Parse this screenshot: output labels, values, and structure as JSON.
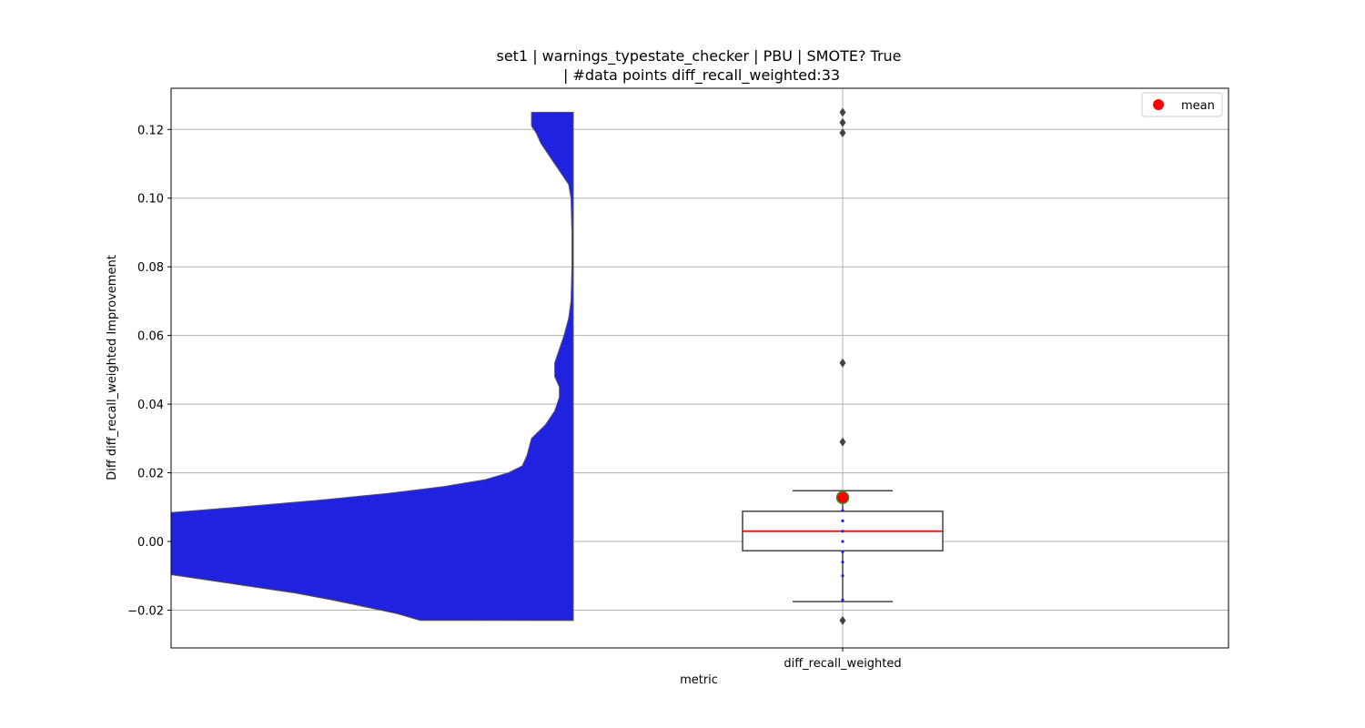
{
  "chart_data": {
    "type": "violin+box",
    "title_line1": "set1 | warnings_typestate_checker | PBU | SMOTE? True",
    "title_line2": "| #data points diff_recall_weighted:33",
    "xlabel": "metric",
    "ylabel": "Diff diff_recall_weighted Improvement",
    "categories": [
      "diff_recall_weighted"
    ],
    "ylim": [
      -0.031,
      0.132
    ],
    "yticks": [
      -0.02,
      0.0,
      0.02,
      0.04,
      0.06,
      0.08,
      0.1,
      0.12
    ],
    "ytick_labels": [
      "−0.02",
      "0.00",
      "0.02",
      "0.04",
      "0.06",
      "0.08",
      "0.10",
      "0.12"
    ],
    "grid": true,
    "legend": {
      "position": "upper-right",
      "entries": [
        {
          "label": "mean",
          "color": "#ff0000"
        }
      ]
    },
    "violin": {
      "color": "#2121e0",
      "range": [
        -0.023,
        0.125
      ],
      "profile": [
        [
          -0.023,
          0.33
        ],
        [
          -0.021,
          0.38
        ],
        [
          -0.019,
          0.45
        ],
        [
          -0.017,
          0.52
        ],
        [
          -0.015,
          0.6
        ],
        [
          -0.013,
          0.7
        ],
        [
          -0.011,
          0.8
        ],
        [
          -0.009,
          0.9
        ],
        [
          -0.007,
          0.96
        ],
        [
          -0.005,
          0.99
        ],
        [
          -0.004,
          1.0
        ],
        [
          0.0,
          1.0
        ],
        [
          0.004,
          1.0
        ],
        [
          0.007,
          1.0
        ],
        [
          0.01,
          0.72
        ],
        [
          0.012,
          0.55
        ],
        [
          0.014,
          0.4
        ],
        [
          0.016,
          0.28
        ],
        [
          0.018,
          0.19
        ],
        [
          0.02,
          0.14
        ],
        [
          0.022,
          0.11
        ],
        [
          0.025,
          0.1
        ],
        [
          0.03,
          0.09
        ],
        [
          0.034,
          0.06
        ],
        [
          0.038,
          0.04
        ],
        [
          0.042,
          0.03
        ],
        [
          0.045,
          0.03
        ],
        [
          0.048,
          0.04
        ],
        [
          0.052,
          0.04
        ],
        [
          0.056,
          0.03
        ],
        [
          0.06,
          0.02
        ],
        [
          0.065,
          0.01
        ],
        [
          0.07,
          0.005
        ],
        [
          0.08,
          0.003
        ],
        [
          0.09,
          0.003
        ],
        [
          0.1,
          0.005
        ],
        [
          0.104,
          0.01
        ],
        [
          0.108,
          0.03
        ],
        [
          0.112,
          0.05
        ],
        [
          0.116,
          0.07
        ],
        [
          0.119,
          0.08
        ],
        [
          0.121,
          0.09
        ],
        [
          0.123,
          0.09
        ],
        [
          0.125,
          0.09
        ]
      ]
    },
    "box": {
      "q1": -0.0027,
      "median": 0.003,
      "q3": 0.0088,
      "whisker_low": -0.0175,
      "whisker_high": 0.0148,
      "median_color": "#ff0000",
      "outliers": [
        0.125,
        0.122,
        0.119,
        0.052,
        0.029,
        -0.023
      ],
      "mean": 0.0128,
      "mean_color": "#ff0000"
    },
    "points": [
      0.012,
      0.009,
      0.006,
      0.003,
      0.0,
      -0.003,
      -0.006,
      -0.01,
      -0.017
    ]
  }
}
